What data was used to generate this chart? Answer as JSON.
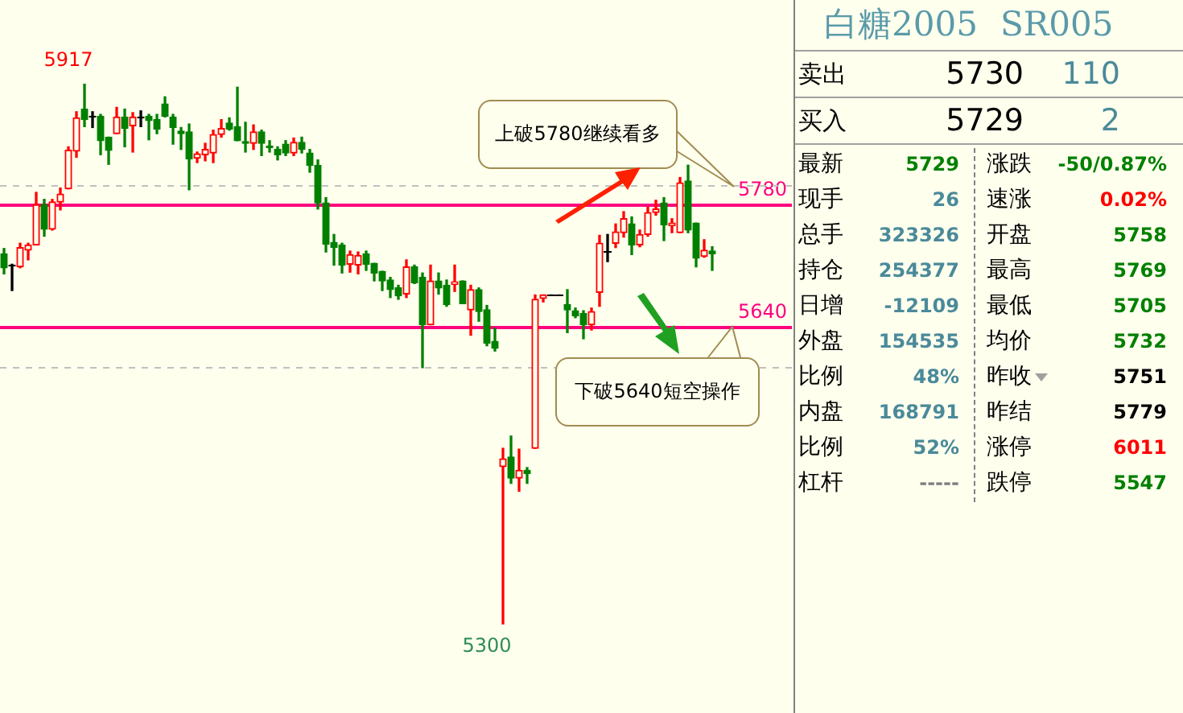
{
  "chart_data": [
    {
      "type": "candlestick",
      "categories": [
        null,
        null,
        null,
        null,
        null,
        null,
        null,
        null,
        null,
        null,
        null,
        null,
        null,
        null,
        null,
        null,
        null,
        null,
        null,
        null,
        null,
        null,
        null,
        null,
        null,
        null,
        null,
        null,
        null,
        null,
        null,
        null,
        null,
        null,
        null,
        null,
        null,
        null,
        null,
        null,
        null,
        null,
        null,
        null,
        null,
        null,
        null,
        null,
        null,
        null,
        null,
        null,
        null,
        null,
        null,
        null,
        null,
        null,
        null,
        null,
        null,
        null,
        null,
        null,
        null,
        null,
        null,
        null,
        null,
        null,
        null,
        null,
        null,
        null,
        null,
        null,
        null,
        null,
        null,
        null,
        null,
        null,
        null,
        null,
        null,
        null,
        null,
        null,
        null
      ],
      "ohlc": [
        [
          5723,
          5729,
          5700,
          5707
        ],
        [
          5710,
          5711,
          5681,
          5709
        ],
        [
          5708,
          5735,
          5707,
          5730
        ],
        [
          5727,
          5735,
          5716,
          5733
        ],
        [
          5733,
          5793,
          5733,
          5779
        ],
        [
          5779,
          5785,
          5743,
          5751
        ],
        [
          5751,
          5785,
          5750,
          5782
        ],
        [
          5782,
          5798,
          5773,
          5791
        ],
        [
          5797,
          5845,
          5797,
          5841
        ],
        [
          5840,
          5885,
          5833,
          5878
        ],
        [
          5888,
          5917,
          5868,
          5876
        ],
        [
          5880,
          5885,
          5867,
          5879
        ],
        [
          5880,
          5882,
          5836,
          5852
        ],
        [
          5856,
          5856,
          5825,
          5841
        ],
        [
          5860,
          5890,
          5860,
          5879
        ],
        [
          5879,
          5888,
          5845,
          5866
        ],
        [
          5869,
          5884,
          5839,
          5879
        ],
        [
          5879,
          5886,
          5868,
          5878
        ],
        [
          5880,
          5882,
          5853,
          5875
        ],
        [
          5876,
          5882,
          5860,
          5865
        ],
        [
          5894,
          5902,
          5879,
          5880
        ],
        [
          5879,
          5882,
          5848,
          5867
        ],
        [
          5863,
          5867,
          5842,
          5860
        ],
        [
          5862,
          5871,
          5796,
          5831
        ],
        [
          5832,
          5839,
          5827,
          5837
        ],
        [
          5836,
          5849,
          5829,
          5842
        ],
        [
          5838,
          5864,
          5827,
          5859
        ],
        [
          5859,
          5876,
          5856,
          5866
        ],
        [
          5872,
          5878,
          5864,
          5865
        ],
        [
          5868,
          5913,
          5852,
          5852
        ],
        [
          5851,
          5873,
          5839,
          5849
        ],
        [
          5849,
          5870,
          5842,
          5862
        ],
        [
          5862,
          5864,
          5835,
          5849
        ],
        [
          5846,
          5852,
          5839,
          5844
        ],
        [
          5842,
          5845,
          5830,
          5836
        ],
        [
          5848,
          5852,
          5835,
          5838
        ],
        [
          5838,
          5855,
          5835,
          5850
        ],
        [
          5850,
          5856,
          5838,
          5842
        ],
        [
          5838,
          5842,
          5816,
          5824
        ],
        [
          5824,
          5830,
          5774,
          5781
        ],
        [
          5781,
          5787,
          5725,
          5734
        ],
        [
          5736,
          5745,
          5710,
          5730
        ],
        [
          5733,
          5735,
          5701,
          5710
        ],
        [
          5711,
          5726,
          5702,
          5722
        ],
        [
          5710,
          5725,
          5700,
          5721
        ],
        [
          5723,
          5726,
          5704,
          5711
        ],
        [
          5712,
          5712,
          5692,
          5701
        ],
        [
          5703,
          5703,
          5681,
          5692
        ],
        [
          5693,
          5696,
          5673,
          5682
        ],
        [
          5684,
          5687,
          5671,
          5675
        ],
        [
          5677,
          5716,
          5673,
          5708
        ],
        [
          5708,
          5710,
          5689,
          5690
        ],
        [
          5696,
          5701,
          5593,
          5642
        ],
        [
          5642,
          5710,
          5642,
          5692
        ],
        [
          5692,
          5701,
          5677,
          5684
        ],
        [
          5687,
          5693,
          5663,
          5665
        ],
        [
          5688,
          5710,
          5680,
          5691
        ],
        [
          5692,
          5692,
          5666,
          5666
        ],
        [
          5659,
          5687,
          5630,
          5682
        ],
        [
          5682,
          5684,
          5646,
          5657
        ],
        [
          5659,
          5664,
          5618,
          5621
        ],
        [
          5623,
          5638,
          5612,
          5615
        ],
        [
          5480,
          5501,
          5300,
          5489
        ],
        [
          5491,
          5515,
          5461,
          5467
        ],
        [
          5467,
          5500,
          5452,
          5476
        ],
        [
          5476,
          5479,
          5461,
          5472
        ],
        [
          5501,
          5676,
          5501,
          5671
        ],
        [
          5672,
          5676,
          5668,
          5676
        ],
        [
          5676,
          5676,
          5676,
          5676
        ],
        [
          5676,
          5676,
          5676,
          5676
        ],
        [
          5665,
          5682,
          5633,
          5659
        ],
        [
          5658,
          5661,
          5650,
          5652
        ],
        [
          5655,
          5658,
          5626,
          5642
        ],
        [
          5642,
          5661,
          5636,
          5657
        ],
        [
          5679,
          5744,
          5663,
          5735
        ],
        [
          5726,
          5745,
          5714,
          5726
        ],
        [
          5735,
          5757,
          5730,
          5748
        ],
        [
          5747,
          5771,
          5742,
          5763
        ],
        [
          5757,
          5765,
          5722,
          5733
        ],
        [
          5733,
          5750,
          5731,
          5745
        ],
        [
          5745,
          5776,
          5743,
          5770
        ],
        [
          5770,
          5784,
          5767,
          5774
        ],
        [
          5781,
          5787,
          5738,
          5756
        ],
        [
          5755,
          5763,
          5747,
          5758
        ],
        [
          5747,
          5810,
          5747,
          5804
        ],
        [
          5806,
          5824,
          5747,
          5750
        ],
        [
          5758,
          5758,
          5708,
          5718
        ],
        [
          5720,
          5739,
          5719,
          5727
        ],
        [
          5726,
          5731,
          5704,
          5723
        ]
      ],
      "colors": [
        "#008000",
        "#000000",
        "#ff0000",
        "#ff0000",
        "#ff0000",
        "#008000",
        "#ff0000",
        "#ff0000",
        "#ff0000",
        "#ff0000",
        "#008000",
        "#000000",
        "#008000",
        "#008000",
        "#ff0000",
        "#008000",
        "#ff0000",
        "#000000",
        "#008000",
        "#008000",
        "#008000",
        "#008000",
        "#008000",
        "#008000",
        "#ff0000",
        "#ff0000",
        "#ff0000",
        "#ff0000",
        "#008000",
        "#008000",
        "#008000",
        "#ff0000",
        "#008000",
        "#008000",
        "#008000",
        "#008000",
        "#ff0000",
        "#008000",
        "#008000",
        "#008000",
        "#008000",
        "#008000",
        "#008000",
        "#ff0000",
        "#ff0000",
        "#008000",
        "#008000",
        "#008000",
        "#008000",
        "#008000",
        "#ff0000",
        "#008000",
        "#008000",
        "#ff0000",
        "#008000",
        "#008000",
        "#ff0000",
        "#008000",
        "#ff0000",
        "#008000",
        "#008000",
        "#008000",
        "#ff0000",
        "#008000",
        "#ff0000",
        "#008000",
        "#ff0000",
        "#ff0000",
        "#000000",
        "#000000",
        "#008000",
        "#008000",
        "#008000",
        "#ff0000",
        "#ff0000",
        "#000000",
        "#ff0000",
        "#ff0000",
        "#008000",
        "#ff0000",
        "#ff0000",
        "#ff0000",
        "#008000",
        "#ff0000",
        "#ff0000",
        "#008000",
        "#008000",
        "#ff0000",
        "#008000"
      ],
      "ref_lines": [
        {
          "axis": "y",
          "value": 5780,
          "label": "5780",
          "color": "#ff0080"
        },
        {
          "axis": "y",
          "value": 5640,
          "label": "5640",
          "color": "#ff0080"
        },
        {
          "axis": "y",
          "value": 5802,
          "color": "#c0c0c0",
          "line_style": "dashed"
        },
        {
          "axis": "y",
          "value": 5594,
          "color": "#c0c0c0",
          "line_style": "dashed"
        }
      ],
      "annotations": [
        "上破5780继续看多",
        "下破5640短空操作",
        "5917",
        "5300"
      ]
    },
    {
      "type": "other",
      "title": "白糖2005",
      "subtitle": "SR005",
      "annotations": [
        "卖出",
        "5730",
        "110",
        "买入",
        "5729",
        "2",
        "最新",
        "5729",
        "涨跌",
        "-50/0.87%",
        "现手",
        "26",
        "速涨",
        "0.02%",
        "总手",
        "323326",
        "开盘",
        "5758",
        "持仓",
        "254377",
        "最高",
        "5769",
        "日增",
        "-12109",
        "最低",
        "5705",
        "外盘",
        "154535",
        "均价",
        "5732",
        "比例",
        "48%",
        "昨收",
        "5751",
        "内盘",
        "168791",
        "昨结",
        "5779",
        "比例",
        "52%",
        "涨停",
        "6011",
        "杠杆",
        "-----",
        "跌停",
        "5547"
      ]
    }
  ]
}
